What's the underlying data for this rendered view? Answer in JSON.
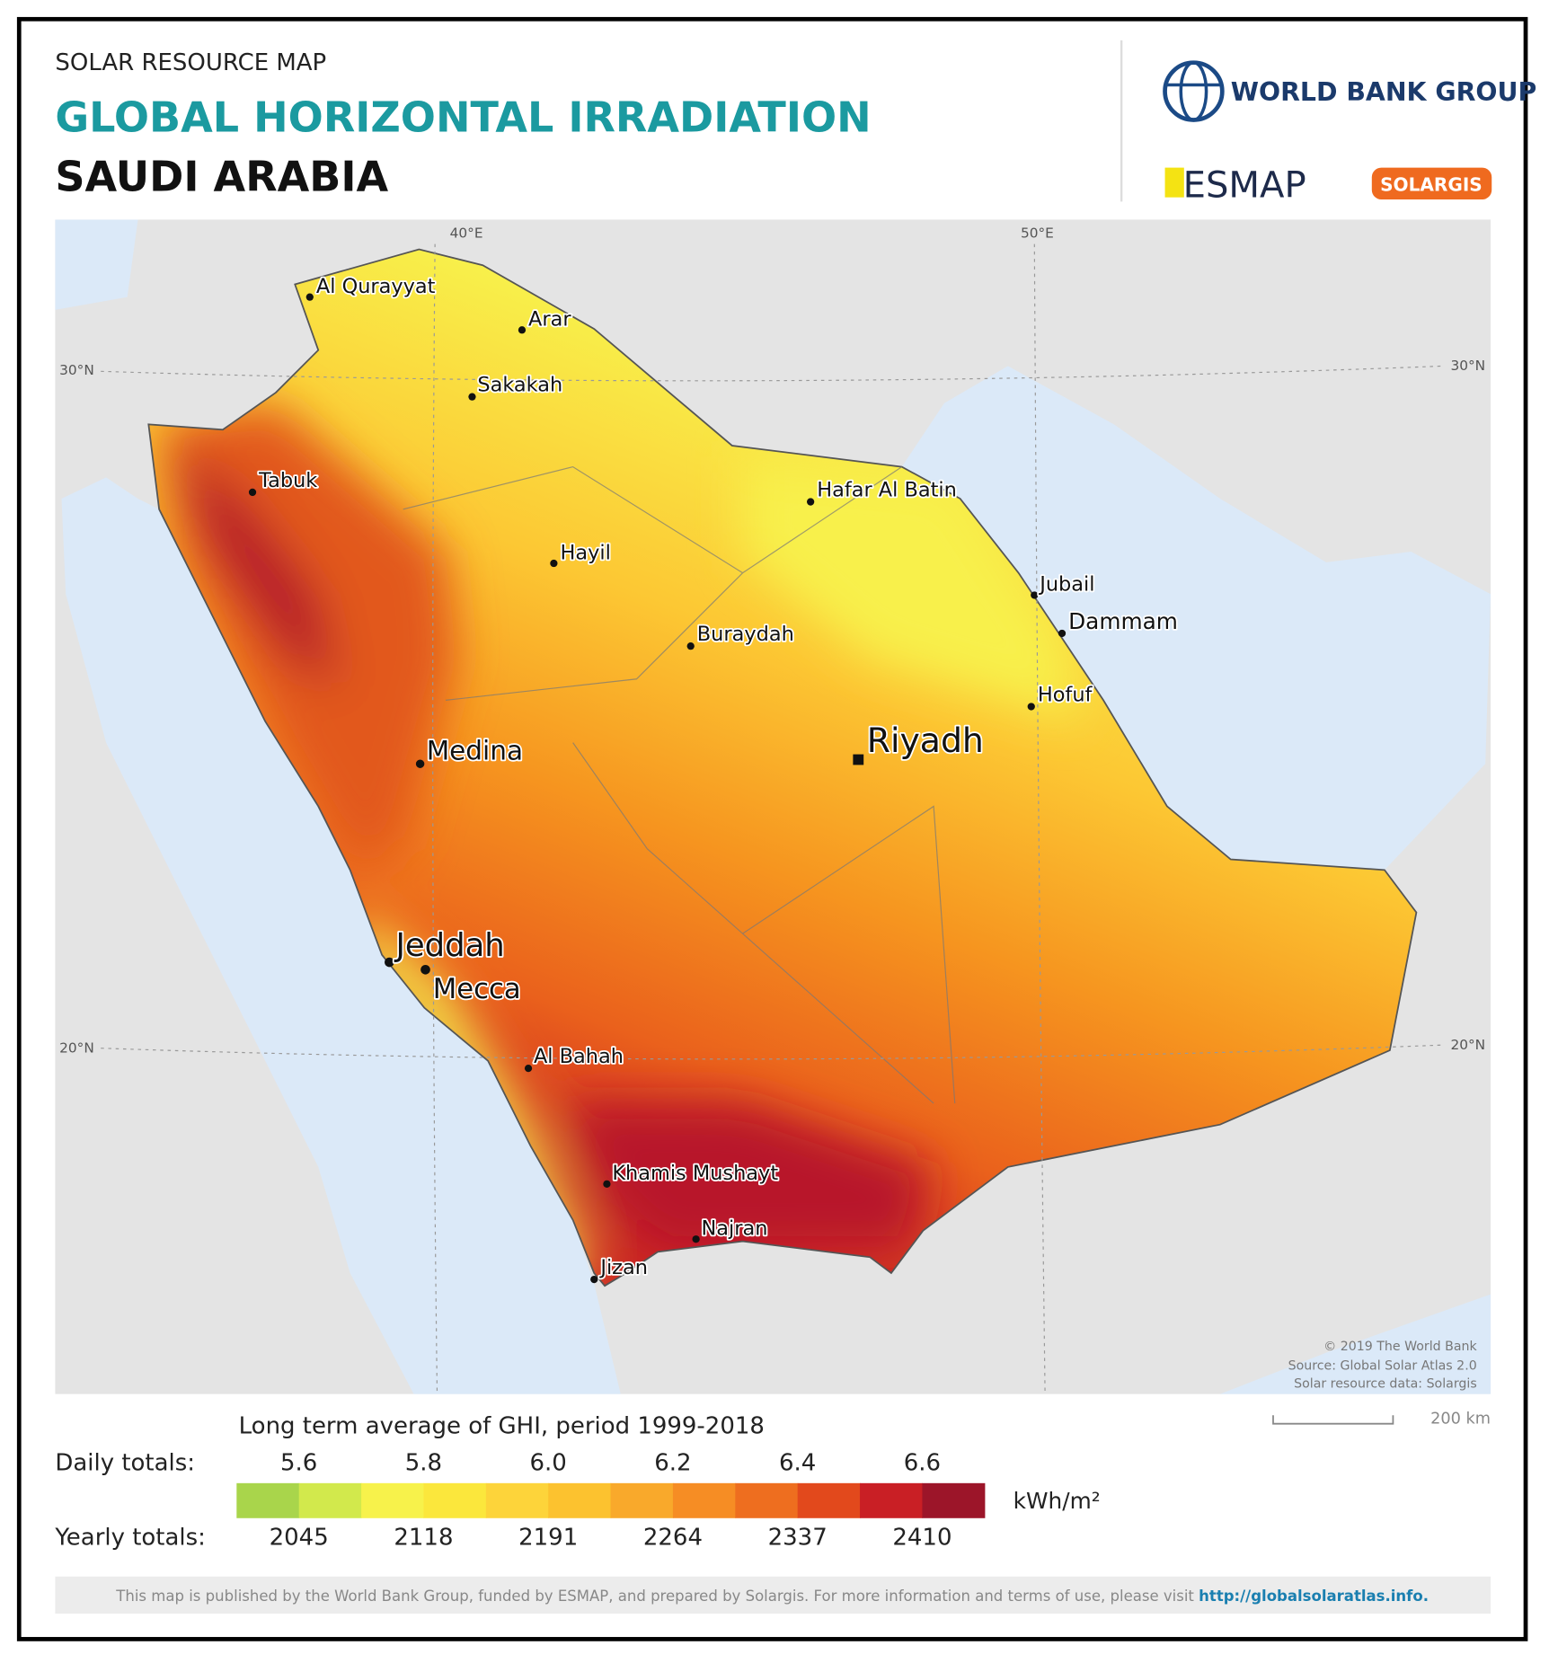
{
  "header": {
    "subtitle": "SOLAR RESOURCE MAP",
    "title": "GLOBAL HORIZONTAL IRRADIATION",
    "country": "SAUDI ARABIA"
  },
  "logos": {
    "world_bank": "WORLD BANK GROUP",
    "esmap": "ESMAP",
    "solargis": "SOLARGIS"
  },
  "map": {
    "graticule": [
      "40°E",
      "50°E",
      "30°N",
      "20°N"
    ],
    "cities": [
      "Al Qurayyat",
      "Arar",
      "Sakakah",
      "Tabuk",
      "Hafar Al Batin",
      "Hayil",
      "Jubail",
      "Dammam",
      "Buraydah",
      "Hofuf",
      "Medina",
      "Jeddah",
      "Mecca",
      "Al Bahah",
      "Khamis Mushayt",
      "Najran",
      "Jizan"
    ],
    "capital": "Riyadh",
    "attribution": [
      "© 2019 The World Bank",
      "Source: Global Solar Atlas 2.0",
      "Solar resource data: Solargis"
    ],
    "scale_bar": "200 km"
  },
  "legend": {
    "title": "Long term average of GHI, period 1999-2018",
    "daily_label": "Daily totals:",
    "daily_values": [
      "5.6",
      "5.8",
      "6.0",
      "6.2",
      "6.4",
      "6.6"
    ],
    "yearly_label": "Yearly totals:",
    "yearly_values": [
      2045,
      2118,
      2191,
      2264,
      2337,
      2410
    ],
    "unit": "kWh/m²",
    "colors": [
      "#a9d54b",
      "#d2e94c",
      "#f7f24b",
      "#fbe73c",
      "#fdd43a",
      "#fcc22f",
      "#f9a92b",
      "#f68d24",
      "#ee6e1f",
      "#e2491c",
      "#c91f25",
      "#9c1529"
    ]
  },
  "footer": {
    "text": "This map is published by the World Bank Group, funded by ESMAP, and prepared by Solargis. For more information and terms of use, please visit ",
    "link": "http://globalsolaratlas.info."
  }
}
